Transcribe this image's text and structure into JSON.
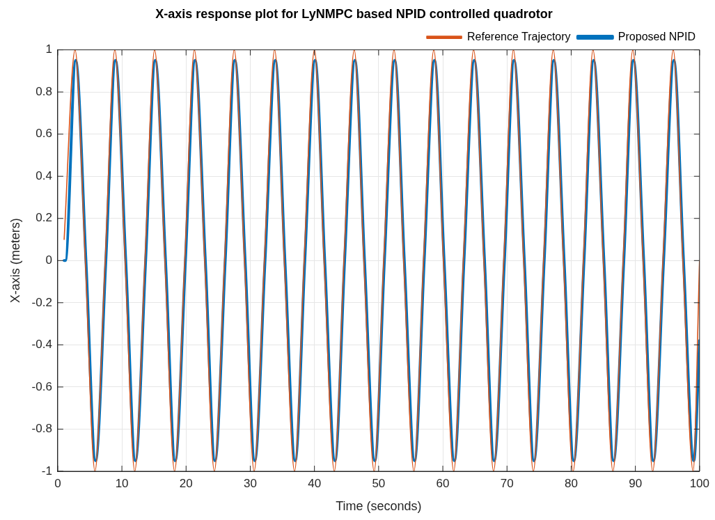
{
  "chart_data": {
    "type": "line",
    "title": "X-axis response plot for LyNMPC based NPID controlled quadrotor",
    "xlabel": "Time (seconds)",
    "ylabel": "X-axis (meters)",
    "xlim": [
      0,
      100
    ],
    "xticks": [
      0,
      10,
      20,
      30,
      40,
      50,
      60,
      70,
      80,
      90,
      100
    ],
    "ylim": [
      -1,
      1
    ],
    "yticks": [
      -1,
      -0.8,
      -0.6,
      -0.4,
      -0.2,
      0,
      0.2,
      0.4,
      0.6,
      0.8,
      1
    ],
    "grid": true,
    "legend": "top right",
    "marker": "none",
    "line_style": "solid",
    "series": [
      {
        "name": "Proposed NPID",
        "color": "#0072bd",
        "x": [
          1.0,
          1.2,
          2.8,
          4.4,
          5.9,
          7.5,
          9.0,
          10.6,
          12.1,
          13.7,
          15.2,
          16.8,
          18.3,
          19.9,
          21.4,
          23.0,
          24.5,
          26.1,
          27.6,
          29.2,
          30.7,
          32.3,
          33.9,
          35.4,
          37.0,
          38.5,
          40.1,
          41.6,
          43.2,
          44.7,
          46.3,
          47.8,
          49.4,
          50.9,
          52.5,
          54.0,
          55.6,
          57.1,
          58.7,
          60.2,
          61.8,
          63.3,
          64.9,
          66.5,
          68.0,
          69.6,
          71.1,
          72.7,
          74.2,
          75.8,
          77.3,
          78.9,
          80.4,
          82.0,
          83.5,
          85.1,
          86.6,
          88.2,
          89.7,
          91.3,
          92.8,
          94.4,
          96.0,
          97.5,
          99.1,
          100
        ],
        "values": [
          0,
          0,
          0.95,
          0,
          -0.95,
          0,
          0.95,
          0,
          -0.95,
          0,
          0.95,
          0,
          -0.95,
          0,
          0.95,
          0,
          -0.95,
          0,
          0.95,
          0,
          -0.95,
          0,
          0.95,
          0,
          -0.95,
          0,
          0.95,
          0,
          -0.95,
          0,
          0.95,
          0,
          -0.95,
          0,
          0.95,
          0,
          -0.95,
          0,
          0.95,
          0,
          -0.95,
          0,
          0.95,
          0,
          -0.95,
          0,
          0.95,
          0,
          -0.95,
          0,
          0.95,
          0,
          -0.95,
          0,
          0.95,
          0,
          -0.95,
          0,
          0.95,
          0,
          -0.95,
          0,
          0.95,
          0,
          -0.95,
          -0.38
        ]
      },
      {
        "name": "Reference Trajectory",
        "color": "#d95319",
        "x": [
          1.0,
          2.7,
          4.3,
          5.8,
          7.4,
          8.9,
          10.5,
          12.0,
          13.6,
          15.1,
          16.7,
          18.2,
          19.8,
          21.3,
          22.9,
          24.4,
          26.0,
          27.5,
          29.1,
          30.6,
          32.2,
          33.8,
          35.3,
          36.9,
          38.4,
          40.0,
          41.5,
          43.1,
          44.6,
          46.2,
          47.7,
          49.3,
          50.8,
          52.4,
          53.9,
          55.5,
          57.0,
          58.6,
          60.1,
          61.7,
          63.2,
          64.8,
          66.4,
          67.9,
          69.5,
          71.0,
          72.6,
          74.1,
          75.7,
          77.2,
          78.8,
          80.3,
          81.9,
          83.4,
          85.0,
          86.5,
          88.1,
          89.6,
          91.2,
          92.7,
          94.3,
          95.9,
          97.4,
          99.0,
          100
        ],
        "values": [
          0.1,
          1,
          0,
          -1,
          0,
          1,
          0,
          -1,
          0,
          1,
          0,
          -1,
          0,
          1,
          0,
          -1,
          0,
          1,
          0,
          -1,
          0,
          1,
          0,
          -1,
          0,
          1,
          0,
          -1,
          0,
          1,
          0,
          -1,
          0,
          1,
          0,
          -1,
          0,
          1,
          0,
          -1,
          0,
          1,
          0,
          -1,
          0,
          1,
          0,
          -1,
          0,
          1,
          0,
          -1,
          0,
          1,
          0,
          -1,
          0,
          1,
          0,
          -1,
          0,
          1,
          0,
          -1,
          0
        ]
      }
    ]
  }
}
